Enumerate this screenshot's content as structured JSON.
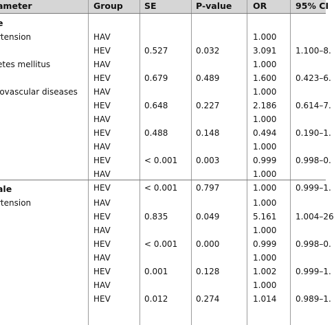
{
  "header": {
    "parameter": "ameter",
    "group": "Group",
    "se": "SE",
    "pvalue": "P-value",
    "or": "OR",
    "ci": "95% CI"
  },
  "sections": [
    {
      "title": "e",
      "rows": [
        {
          "param": "rtension",
          "group": "HAV",
          "se": "",
          "p": "",
          "or": "1.000",
          "ci": ""
        },
        {
          "param": "",
          "group": "HEV",
          "se": "0.527",
          "p": "0.032",
          "or": "3.091",
          "ci": "1.100–8."
        },
        {
          "param": "etes mellitus",
          "group": "HAV",
          "se": "",
          "p": "",
          "or": "1.000",
          "ci": ""
        },
        {
          "param": "",
          "group": "HEV",
          "se": "0.679",
          "p": "0.489",
          "or": "1.600",
          "ci": "0.423–6."
        },
        {
          "param": "iovascular diseases",
          "group": "HAV",
          "se": "",
          "p": "",
          "or": "1.000",
          "ci": ""
        },
        {
          "param": "",
          "group": "HEV",
          "se": "0.648",
          "p": "0.227",
          "or": "2.186",
          "ci": "0.614–7."
        },
        {
          "param": "-",
          "group": "HAV",
          "se": "",
          "p": "",
          "or": "1.000",
          "ci": ""
        },
        {
          "param": "",
          "group": "HEV",
          "se": "0.488",
          "p": "0.148",
          "or": "0.494",
          "ci": "0.190–1."
        },
        {
          "param": "",
          "group": "HAV",
          "se": "",
          "p": "",
          "or": "1.000",
          "ci": ""
        },
        {
          "param": "",
          "group": "HEV",
          "se": "< 0.001",
          "p": "0.003",
          "or": "0.999",
          "ci": "0.998–0."
        },
        {
          "param": "",
          "group": "HAV",
          "se": "",
          "p": "",
          "or": "1.000",
          "ci": ""
        },
        {
          "param": "",
          "group": "HEV",
          "se": "< 0.001",
          "p": "0.797",
          "or": "1.000",
          "ci": "0.999–1."
        }
      ]
    },
    {
      "title": "ale",
      "rows": [
        {
          "param": "rtension",
          "group": "HAV",
          "se": "",
          "p": "",
          "or": "1.000",
          "ci": ""
        },
        {
          "param": "",
          "group": "HEV",
          "se": "0.835",
          "p": "0.049",
          "or": "5.161",
          "ci": "1.004–26"
        },
        {
          "param": "",
          "group": "HAV",
          "se": "",
          "p": "",
          "or": "1.000",
          "ci": ""
        },
        {
          "param": "",
          "group": "HEV",
          "se": "< 0.001",
          "p": "0.000",
          "or": "0.999",
          "ci": "0.998–0."
        },
        {
          "param": "",
          "group": "HAV",
          "se": "",
          "p": "",
          "or": "1.000",
          "ci": ""
        },
        {
          "param": "",
          "group": "HEV",
          "se": "0.001",
          "p": "0.128",
          "or": "1.002",
          "ci": "0.999–1."
        },
        {
          "param": "",
          "group": "HAV",
          "se": "",
          "p": "",
          "or": "1.000",
          "ci": ""
        },
        {
          "param": "",
          "group": "HEV",
          "se": "0.012",
          "p": "0.274",
          "or": "1.014",
          "ci": "0.989–1."
        }
      ]
    }
  ]
}
